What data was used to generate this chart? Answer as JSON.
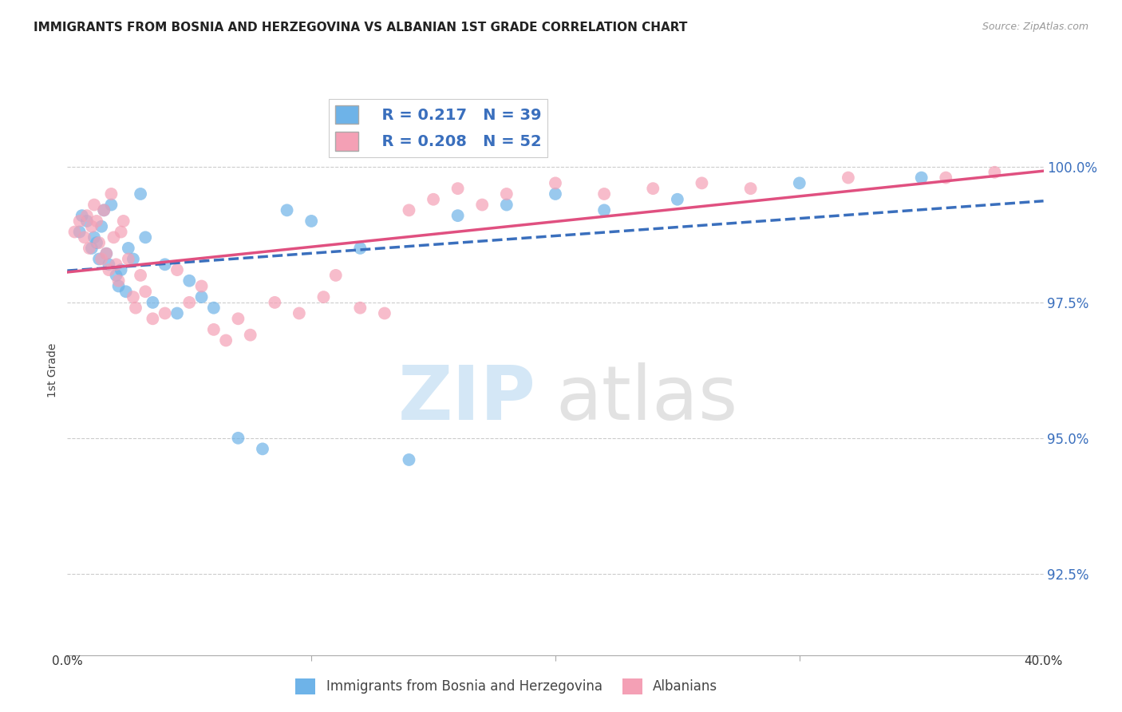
{
  "title": "IMMIGRANTS FROM BOSNIA AND HERZEGOVINA VS ALBANIAN 1ST GRADE CORRELATION CHART",
  "source": "Source: ZipAtlas.com",
  "ylabel": "1st Grade",
  "y_tick_labels": [
    "92.5%",
    "95.0%",
    "97.5%",
    "100.0%"
  ],
  "y_tick_values": [
    92.5,
    95.0,
    97.5,
    100.0
  ],
  "xlim": [
    0.0,
    40.0
  ],
  "ylim": [
    91.0,
    101.5
  ],
  "blue_R": 0.217,
  "blue_N": 39,
  "pink_R": 0.208,
  "pink_N": 52,
  "blue_color": "#6eb3e8",
  "pink_color": "#f4a0b5",
  "trend_blue": "#3a6fbd",
  "trend_pink": "#e05080",
  "blue_scatter_x": [
    0.5,
    0.6,
    0.8,
    1.0,
    1.1,
    1.2,
    1.3,
    1.4,
    1.5,
    1.6,
    1.7,
    1.8,
    2.0,
    2.1,
    2.2,
    2.4,
    2.5,
    2.7,
    3.0,
    3.2,
    3.5,
    4.0,
    4.5,
    5.0,
    5.5,
    6.0,
    7.0,
    8.0,
    9.0,
    10.0,
    12.0,
    14.0,
    16.0,
    18.0,
    20.0,
    22.0,
    25.0,
    30.0,
    35.0
  ],
  "blue_scatter_y": [
    98.8,
    99.1,
    99.0,
    98.5,
    98.7,
    98.6,
    98.3,
    98.9,
    99.2,
    98.4,
    98.2,
    99.3,
    98.0,
    97.8,
    98.1,
    97.7,
    98.5,
    98.3,
    99.5,
    98.7,
    97.5,
    98.2,
    97.3,
    97.9,
    97.6,
    97.4,
    95.0,
    94.8,
    99.2,
    99.0,
    98.5,
    94.6,
    99.1,
    99.3,
    99.5,
    99.2,
    99.4,
    99.7,
    99.8
  ],
  "pink_scatter_x": [
    0.3,
    0.5,
    0.7,
    0.8,
    0.9,
    1.0,
    1.1,
    1.2,
    1.3,
    1.4,
    1.5,
    1.6,
    1.7,
    1.8,
    1.9,
    2.0,
    2.1,
    2.2,
    2.3,
    2.5,
    2.7,
    2.8,
    3.0,
    3.2,
    3.5,
    4.0,
    4.5,
    5.0,
    5.5,
    6.0,
    6.5,
    7.0,
    7.5,
    8.5,
    9.5,
    10.5,
    11.0,
    12.0,
    13.0,
    14.0,
    15.0,
    16.0,
    17.0,
    18.0,
    20.0,
    22.0,
    24.0,
    26.0,
    28.0,
    32.0,
    36.0,
    38.0
  ],
  "pink_scatter_y": [
    98.8,
    99.0,
    98.7,
    99.1,
    98.5,
    98.9,
    99.3,
    99.0,
    98.6,
    98.3,
    99.2,
    98.4,
    98.1,
    99.5,
    98.7,
    98.2,
    97.9,
    98.8,
    99.0,
    98.3,
    97.6,
    97.4,
    98.0,
    97.7,
    97.2,
    97.3,
    98.1,
    97.5,
    97.8,
    97.0,
    96.8,
    97.2,
    96.9,
    97.5,
    97.3,
    97.6,
    98.0,
    97.4,
    97.3,
    99.2,
    99.4,
    99.6,
    99.3,
    99.5,
    99.7,
    99.5,
    99.6,
    99.7,
    99.6,
    99.8,
    99.8,
    99.9
  ]
}
